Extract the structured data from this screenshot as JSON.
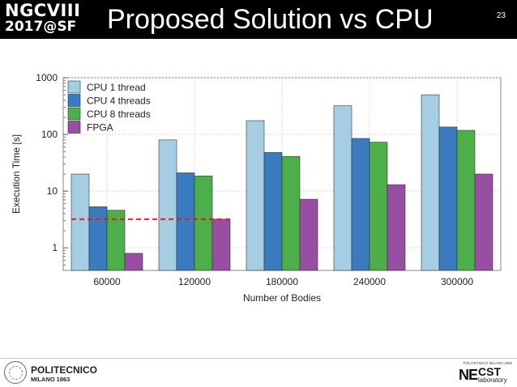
{
  "header": {
    "logo_line1": "NGCVIII",
    "logo_line2": "2017@SF",
    "title": "Proposed Solution vs CPU",
    "page_number": "23"
  },
  "chart_data": {
    "type": "bar",
    "categories": [
      "60000",
      "120000",
      "180000",
      "240000",
      "300000"
    ],
    "series": [
      {
        "name": "CPU 1 thread",
        "color": "#a6cee3",
        "values": [
          20,
          80,
          175,
          320,
          500
        ]
      },
      {
        "name": "CPU 4 threads",
        "color": "#3a7bbf",
        "values": [
          5.3,
          21,
          48,
          85,
          135
        ]
      },
      {
        "name": "CPU 8 threads",
        "color": "#4daf4a",
        "values": [
          4.6,
          18.5,
          41,
          73,
          118
        ]
      },
      {
        "name": "FPGA",
        "color": "#984ea3",
        "values": [
          0.8,
          3.2,
          7.2,
          13,
          20
        ]
      }
    ],
    "xlabel": "Number of Bodies",
    "ylabel": "Execution Time [s]",
    "yscale": "log",
    "ylim": [
      0.4,
      1000
    ],
    "yticks": [
      "1",
      "10",
      "100",
      "1000"
    ],
    "grid": true,
    "legend_position": "top-left",
    "reference_line": {
      "value": 3.2,
      "color": "#e41a1c",
      "style": "dashed"
    }
  },
  "footer": {
    "left_name": "POLITECNICO",
    "left_city": "MILANO 1863",
    "right_top": "POLITECNICO MILANO 1863",
    "right_ne": "NE",
    "right_cst": "CST",
    "right_lab": "laboratory"
  }
}
